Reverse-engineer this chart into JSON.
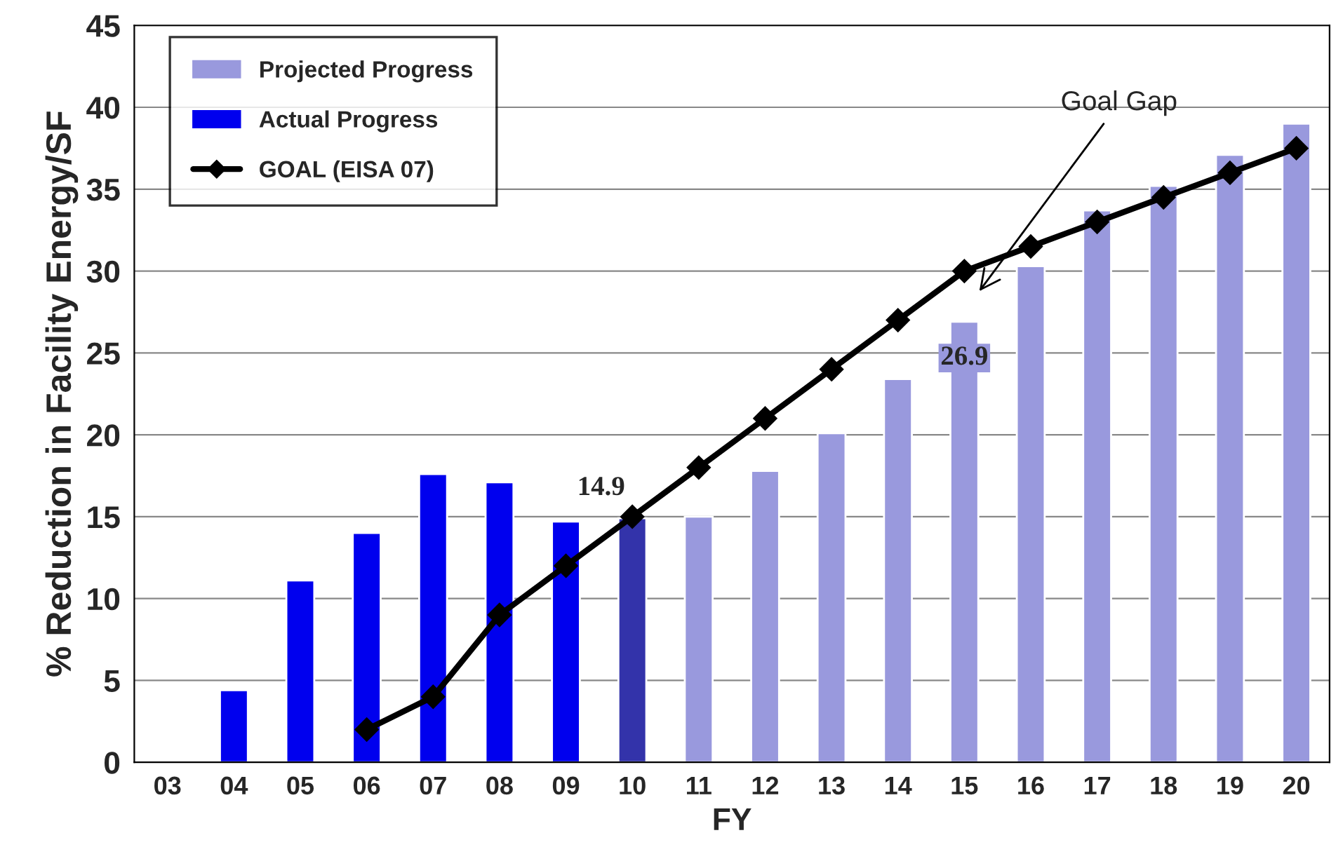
{
  "chart_data": {
    "type": "bar",
    "xlabel": "FY",
    "ylabel": "% Reduction in Facility Energy/SF",
    "categories": [
      "03",
      "04",
      "05",
      "06",
      "07",
      "08",
      "09",
      "10",
      "11",
      "12",
      "13",
      "14",
      "15",
      "16",
      "17",
      "18",
      "19",
      "20"
    ],
    "series": [
      {
        "name": "Projected Progress",
        "color": "#9999dd",
        "values": [
          null,
          null,
          null,
          null,
          null,
          null,
          null,
          null,
          15.0,
          17.8,
          20.1,
          23.4,
          26.9,
          30.3,
          33.7,
          35.2,
          37.1,
          39.0
        ],
        "value_labels": [
          null,
          null,
          null,
          null,
          null,
          null,
          null,
          null,
          null,
          null,
          null,
          null,
          "26.9",
          null,
          null,
          null,
          null,
          null
        ]
      },
      {
        "name": "Actual Progress",
        "color": "#0000ee",
        "colors": [
          null,
          "#0000ee",
          "#0000ee",
          "#0000ee",
          "#0000ee",
          "#0000ee",
          "#0000ee",
          "#3333aa",
          null,
          null,
          null,
          null,
          null,
          null,
          null,
          null,
          null,
          null
        ],
        "values": [
          null,
          4.4,
          11.1,
          14.0,
          17.6,
          17.1,
          14.7,
          14.9,
          null,
          null,
          null,
          null,
          null,
          null,
          null,
          null,
          null,
          null
        ],
        "value_labels": [
          null,
          null,
          null,
          null,
          null,
          null,
          null,
          "14.9",
          null,
          null,
          null,
          null,
          null,
          null,
          null,
          null,
          null,
          null
        ]
      },
      {
        "name": "GOAL (EISA 07)",
        "type": "line",
        "color": "#000000",
        "marker": "diamond",
        "values": [
          null,
          null,
          null,
          2,
          4,
          9,
          12,
          15,
          18,
          21,
          24,
          27,
          30,
          31.5,
          33,
          34.5,
          36,
          37.5
        ]
      }
    ],
    "annotations": [
      "Goal Gap"
    ],
    "ylim": [
      0,
      45
    ],
    "yticks": [
      0,
      5,
      10,
      15,
      20,
      25,
      30,
      35,
      40,
      45
    ],
    "grid": "y",
    "legend": "top left"
  }
}
